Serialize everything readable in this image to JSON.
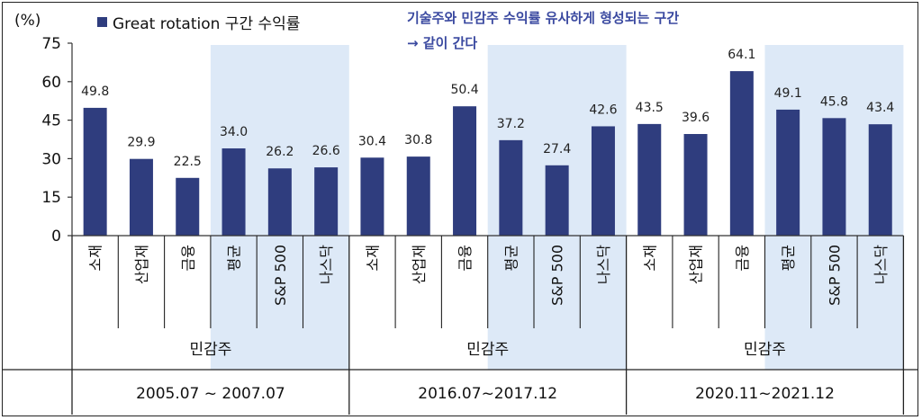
{
  "chart_data": {
    "type": "bar",
    "unit_label": "(%)",
    "legend": "Great rotation 구간 수익률",
    "annotation": [
      "기술주와 민감주 수익률 유사하게 형성되는 구간",
      "→ 같이 간다"
    ],
    "ylim": [
      0,
      75
    ],
    "yticks": [
      0,
      15,
      30,
      45,
      60,
      75
    ],
    "colors": {
      "bar": "#2f3d7e",
      "highlight": "#dde9f7"
    },
    "categories": [
      "소재",
      "산업재",
      "금융",
      "평균",
      "S&P 500",
      "나스닥",
      "소재",
      "산업재",
      "금융",
      "평균",
      "S&P 500",
      "나스닥",
      "소재",
      "산업재",
      "금융",
      "평균",
      "S&P 500",
      "나스닥"
    ],
    "values": [
      49.8,
      29.9,
      22.5,
      34.0,
      26.2,
      26.6,
      30.4,
      30.8,
      50.4,
      37.2,
      27.4,
      42.6,
      43.5,
      39.6,
      64.1,
      49.1,
      45.8,
      43.4
    ],
    "value_labels": [
      "49.8",
      "29.9",
      "22.5",
      "34.0",
      "26.2",
      "26.6",
      "30.4",
      "30.8",
      "50.4",
      "37.2",
      "27.4",
      "42.6",
      "43.5",
      "39.6",
      "64.1",
      "49.1",
      "45.8",
      "43.4"
    ],
    "groups": [
      {
        "sector_label": "민감주",
        "period": "2005.07 ~ 2007.07"
      },
      {
        "sector_label": "민감주",
        "period": "2016.07~2017.12"
      },
      {
        "sector_label": "민감주",
        "period": "2020.11~2021.12"
      }
    ]
  }
}
